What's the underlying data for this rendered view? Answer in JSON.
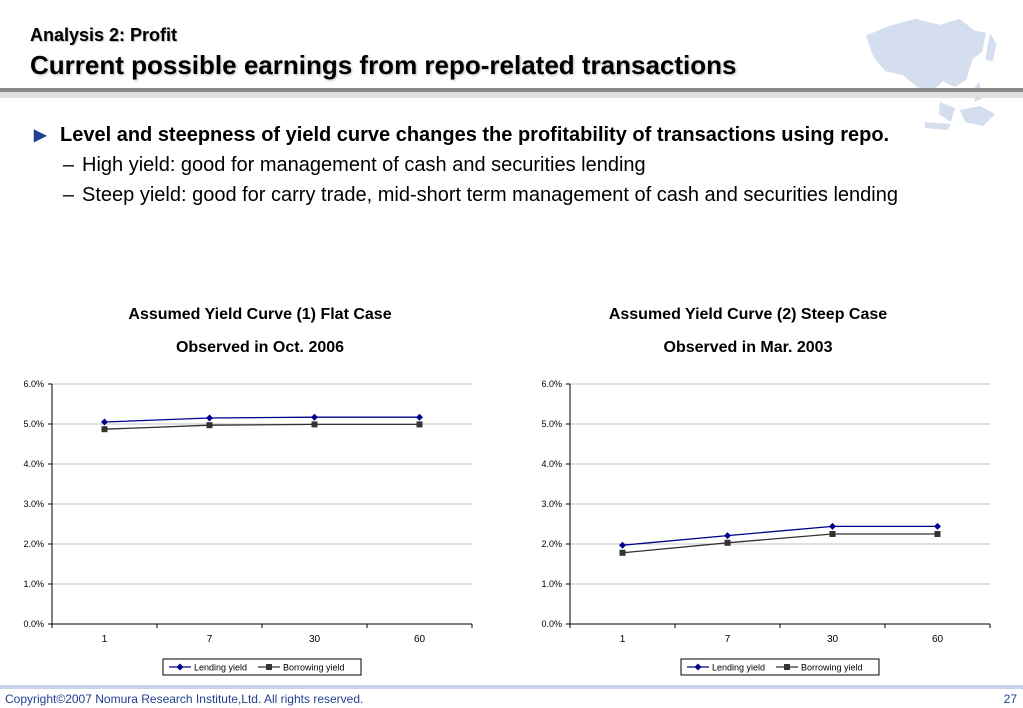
{
  "header": {
    "kicker": "Analysis 2: Profit",
    "title": "Current possible earnings from repo-related transactions"
  },
  "bullets": {
    "main": "Level and steepness of yield curve changes the profitability of transactions using repo.",
    "sub1": "High yield: good for management of cash and securities lending",
    "sub2": "Steep yield: good for carry trade, mid-short term management of cash and securities lending",
    "dash": "–"
  },
  "footer": {
    "copyright": "Copyright©2007 Nomura Research Institute,Ltd. All rights reserved.",
    "page": "27"
  },
  "colors": {
    "lending": "#00008b",
    "borrowing": "#333333",
    "accent": "#1f3f8f"
  },
  "chart_data": [
    {
      "type": "line",
      "title": "Assumed Yield Curve (1) Flat Case",
      "subtitle": "Observed in Oct. 2006",
      "categories": [
        "1",
        "7",
        "30",
        "60"
      ],
      "series": [
        {
          "name": "Lending yield",
          "marker": "diamond",
          "values": [
            5.05,
            5.15,
            5.17,
            5.17
          ]
        },
        {
          "name": "Borrowing yield",
          "marker": "square",
          "values": [
            4.87,
            4.97,
            4.99,
            4.99
          ]
        }
      ],
      "ylim": [
        0,
        6
      ],
      "yticks": [
        "0.0%",
        "1.0%",
        "2.0%",
        "3.0%",
        "4.0%",
        "5.0%",
        "6.0%"
      ],
      "grid": true,
      "legend": "bottom"
    },
    {
      "type": "line",
      "title": "Assumed Yield Curve (2) Steep Case",
      "subtitle": "Observed in Mar. 2003",
      "categories": [
        "1",
        "7",
        "30",
        "60"
      ],
      "series": [
        {
          "name": "Lending yield",
          "marker": "diamond",
          "values": [
            1.97,
            2.21,
            2.44,
            2.44
          ]
        },
        {
          "name": "Borrowing yield",
          "marker": "square",
          "values": [
            1.78,
            2.03,
            2.25,
            2.25
          ]
        }
      ],
      "ylim": [
        0,
        6
      ],
      "yticks": [
        "0.0%",
        "1.0%",
        "2.0%",
        "3.0%",
        "4.0%",
        "5.0%",
        "6.0%"
      ],
      "grid": true,
      "legend": "bottom"
    }
  ]
}
